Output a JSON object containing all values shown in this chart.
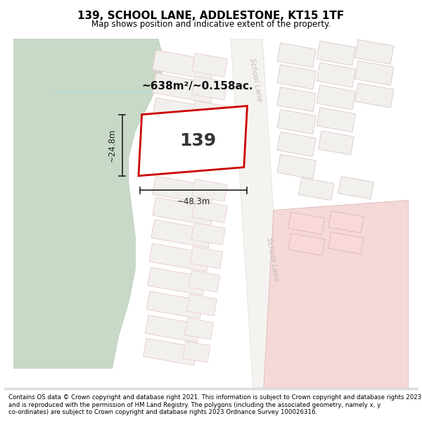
{
  "title": "139, SCHOOL LANE, ADDLESTONE, KT15 1TF",
  "subtitle": "Map shows position and indicative extent of the property.",
  "footer": "Contains OS data © Crown copyright and database right 2021. This information is subject to Crown copyright and database rights 2023 and is reproduced with the permission of HM Land Registry. The polygons (including the associated geometry, namely x, y co-ordinates) are subject to Crown copyright and database rights 2023 Ordnance Survey 100026316.",
  "area_label": "~638m²/~0.158ac.",
  "width_label": "~48.3m",
  "height_label": "~24.8m",
  "plot_number": "139",
  "bg_color": "#ffffff",
  "map_bg": "#ffffff",
  "green_color": "#c9d9c8",
  "green_edge": "#b8cab8",
  "road_fill": "#f0eeeb",
  "road_edge": "#e8d8d8",
  "plot_fill_left": "#f2f0ed",
  "plot_edge_left": "#e8c8c8",
  "plot_fill_right": "#f5f3f0",
  "plot_edge_right": "#e0c0c0",
  "highlight_fill": "#f5d8d8",
  "highlight_edge": "#d8b0b0",
  "red_plot_stroke": "#cc0000",
  "red_plot_fill": "#ffffff",
  "dim_color": "#222222",
  "road_label_color": "#c0bcb8",
  "title_fontsize": 11,
  "subtitle_fontsize": 8.5,
  "area_fontsize": 11,
  "plot_num_fontsize": 18,
  "dim_fontsize": 8.5,
  "footer_fontsize": 6.2,
  "road_label_fontsize": 7.5
}
